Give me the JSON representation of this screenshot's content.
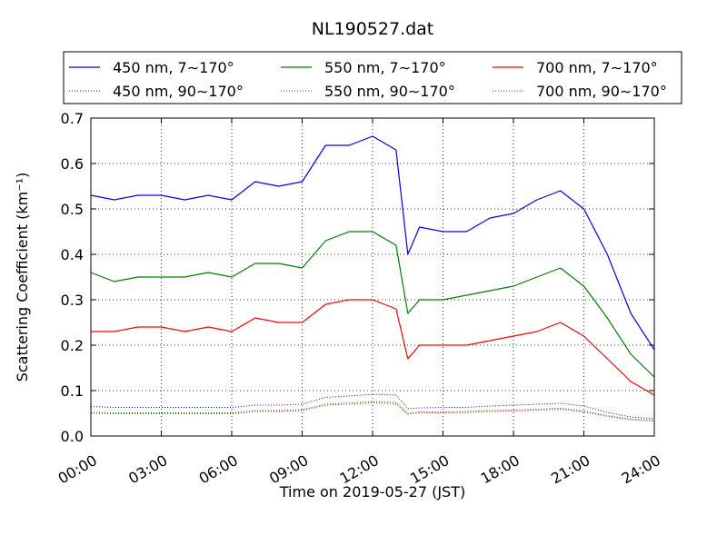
{
  "chart_data": {
    "type": "line",
    "title": "NL190527.dat",
    "xlabel": "Time on 2019-05-27 (JST)",
    "ylabel": "Scattering Coefficient (km⁻¹)",
    "xlim": [
      "00:00",
      "24:00"
    ],
    "ylim": [
      0,
      0.7
    ],
    "grid": true,
    "legend_position": "top",
    "x_tick_labels": [
      "00:00",
      "03:00",
      "06:00",
      "09:00",
      "12:00",
      "15:00",
      "18:00",
      "21:00",
      "24:00"
    ],
    "y_tick_labels": [
      "0.0",
      "0.1",
      "0.2",
      "0.3",
      "0.4",
      "0.5",
      "0.6",
      "0.7"
    ],
    "x": [
      "00:00",
      "01:00",
      "02:00",
      "03:00",
      "04:00",
      "05:00",
      "06:00",
      "07:00",
      "08:00",
      "09:00",
      "10:00",
      "11:00",
      "12:00",
      "13:00",
      "13:30",
      "14:00",
      "15:00",
      "16:00",
      "17:00",
      "18:00",
      "19:00",
      "20:00",
      "21:00",
      "22:00",
      "23:00",
      "24:00"
    ],
    "series": [
      {
        "name": "450 nm, 7∼170°",
        "color": "#0000ff",
        "style": "solid",
        "values": [
          0.53,
          0.52,
          0.53,
          0.53,
          0.52,
          0.53,
          0.52,
          0.56,
          0.55,
          0.56,
          0.64,
          0.64,
          0.66,
          0.63,
          0.4,
          0.46,
          0.45,
          0.45,
          0.48,
          0.49,
          0.52,
          0.54,
          0.5,
          0.4,
          0.27,
          0.19
        ]
      },
      {
        "name": "450 nm, 90∼170°",
        "color": "#0000ff",
        "style": "dotted",
        "values": [
          0.065,
          0.063,
          0.063,
          0.063,
          0.063,
          0.063,
          0.063,
          0.068,
          0.068,
          0.07,
          0.085,
          0.088,
          0.092,
          0.09,
          0.06,
          0.062,
          0.063,
          0.063,
          0.066,
          0.068,
          0.07,
          0.072,
          0.066,
          0.052,
          0.042,
          0.038
        ]
      },
      {
        "name": "550 nm, 7∼170°",
        "color": "#008000",
        "style": "solid",
        "values": [
          0.36,
          0.34,
          0.35,
          0.35,
          0.35,
          0.36,
          0.35,
          0.38,
          0.38,
          0.37,
          0.43,
          0.45,
          0.45,
          0.42,
          0.27,
          0.3,
          0.3,
          0.31,
          0.32,
          0.33,
          0.35,
          0.37,
          0.33,
          0.26,
          0.18,
          0.13
        ]
      },
      {
        "name": "550 nm, 90∼170°",
        "color": "#008000",
        "style": "dotted",
        "values": [
          0.052,
          0.051,
          0.051,
          0.051,
          0.051,
          0.051,
          0.051,
          0.056,
          0.056,
          0.058,
          0.07,
          0.073,
          0.076,
          0.074,
          0.05,
          0.053,
          0.053,
          0.054,
          0.056,
          0.057,
          0.059,
          0.061,
          0.055,
          0.045,
          0.037,
          0.034
        ]
      },
      {
        "name": "700 nm, 7∼170°",
        "color": "#ff0000",
        "style": "solid",
        "values": [
          0.23,
          0.23,
          0.24,
          0.24,
          0.23,
          0.24,
          0.23,
          0.26,
          0.25,
          0.25,
          0.29,
          0.3,
          0.3,
          0.28,
          0.17,
          0.2,
          0.2,
          0.2,
          0.21,
          0.22,
          0.23,
          0.25,
          0.22,
          0.17,
          0.12,
          0.09
        ]
      },
      {
        "name": "700 nm, 90∼170°",
        "color": "#ff0000",
        "style": "dotted",
        "values": [
          0.05,
          0.049,
          0.049,
          0.049,
          0.049,
          0.049,
          0.049,
          0.054,
          0.054,
          0.056,
          0.068,
          0.07,
          0.073,
          0.071,
          0.048,
          0.051,
          0.051,
          0.052,
          0.054,
          0.055,
          0.057,
          0.059,
          0.053,
          0.043,
          0.036,
          0.033
        ]
      }
    ]
  }
}
